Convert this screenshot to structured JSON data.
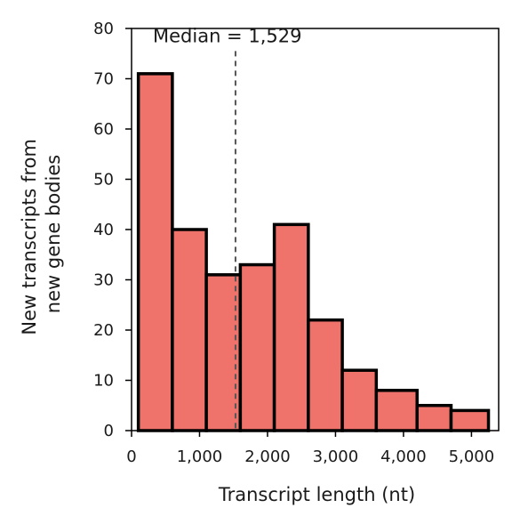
{
  "chart_data": {
    "type": "bar",
    "title": "",
    "xlabel": "Transcript length (nt)",
    "ylabel_lines": [
      "New transcripts from",
      "new gene bodies"
    ],
    "bin_edges": [
      100,
      600,
      1100,
      1600,
      2100,
      2600,
      3100,
      3600,
      4200,
      4700,
      5250
    ],
    "values": [
      71,
      40,
      31,
      33,
      41,
      22,
      12,
      8,
      5,
      4
    ],
    "xlim": [
      0,
      5400
    ],
    "ylim": [
      0,
      80
    ],
    "x_ticks": [
      0,
      1000,
      2000,
      3000,
      4000,
      5000
    ],
    "x_tick_labels": [
      "0",
      "1,000",
      "2,000",
      "3,000",
      "4,000",
      "5,000"
    ],
    "y_ticks": [
      0,
      10,
      20,
      30,
      40,
      50,
      60,
      70,
      80
    ],
    "y_tick_labels": [
      "0",
      "10",
      "20",
      "30",
      "40",
      "50",
      "60",
      "70",
      "80"
    ],
    "bar_color": "#ef736b",
    "bar_edge_color": "#000000",
    "median": 1529,
    "median_label": "Median = 1,529",
    "median_line_color": "#555555",
    "legend": "none",
    "grid": false
  }
}
